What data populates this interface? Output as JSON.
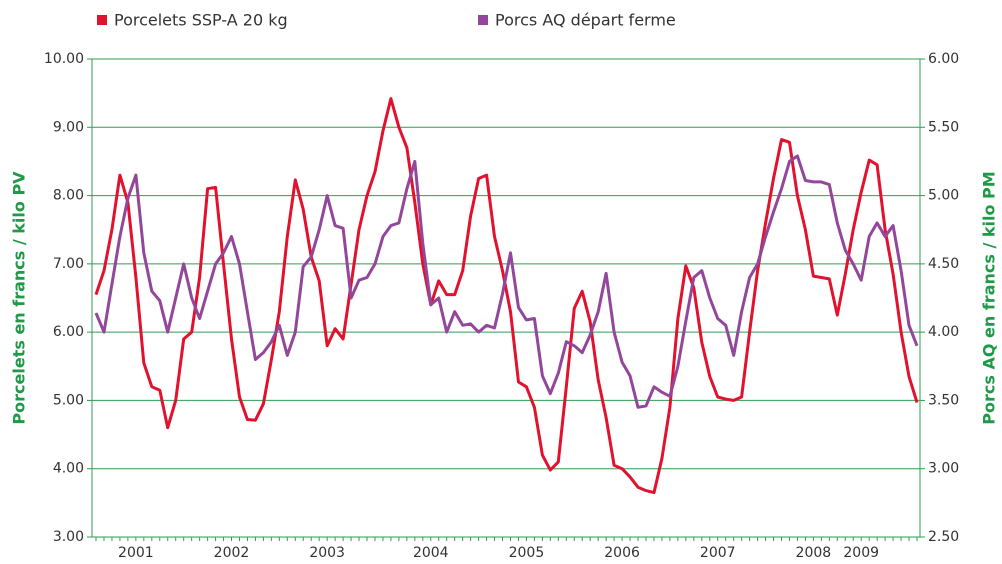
{
  "chart_data": {
    "type": "line",
    "categories": [
      null,
      null,
      null,
      null,
      null,
      "2001",
      null,
      null,
      null,
      null,
      null,
      null,
      null,
      null,
      null,
      null,
      null,
      "2002",
      null,
      null,
      null,
      null,
      null,
      null,
      null,
      null,
      null,
      null,
      null,
      "2003",
      null,
      null,
      null,
      null,
      null,
      null,
      null,
      null,
      null,
      null,
      null,
      null,
      "2004",
      null,
      null,
      null,
      null,
      null,
      null,
      null,
      null,
      null,
      null,
      null,
      "2005",
      null,
      null,
      null,
      null,
      null,
      null,
      null,
      null,
      null,
      null,
      null,
      "2006",
      null,
      null,
      null,
      null,
      null,
      null,
      null,
      null,
      null,
      null,
      null,
      "2007",
      null,
      null,
      null,
      null,
      null,
      null,
      null,
      null,
      null,
      null,
      null,
      "2008",
      null,
      null,
      null,
      null,
      null,
      "2009",
      null,
      null,
      null,
      null,
      null,
      null,
      null
    ],
    "series": [
      {
        "name": "Porcelets SSP-A 20 kg",
        "color": "#e2122e",
        "axis": "y",
        "values": [
          6.55,
          6.9,
          7.5,
          8.3,
          7.9,
          6.8,
          5.55,
          5.2,
          5.15,
          4.6,
          5.0,
          5.9,
          6.0,
          6.8,
          8.1,
          8.12,
          7.0,
          5.9,
          5.05,
          4.72,
          4.71,
          4.95,
          5.6,
          6.3,
          7.4,
          8.23,
          7.8,
          7.1,
          6.75,
          5.8,
          6.05,
          5.9,
          6.7,
          7.5,
          8.0,
          8.35,
          8.95,
          9.42,
          9.0,
          8.7,
          7.9,
          7.0,
          6.4,
          6.75,
          6.55,
          6.55,
          6.9,
          7.7,
          8.25,
          8.3,
          7.4,
          6.9,
          6.3,
          5.27,
          5.2,
          4.9,
          4.2,
          3.98,
          4.1,
          5.2,
          6.35,
          6.6,
          6.15,
          5.3,
          4.75,
          4.05,
          4.0,
          3.88,
          3.73,
          3.68,
          3.65,
          4.15,
          4.9,
          6.2,
          6.97,
          6.65,
          5.85,
          5.35,
          5.05,
          5.02,
          5.0,
          5.05,
          6.0,
          6.9,
          7.6,
          8.25,
          8.82,
          8.78,
          8.0,
          7.5,
          6.82,
          6.8,
          6.78,
          6.25,
          6.85,
          7.5,
          8.05,
          8.52,
          8.45,
          7.5,
          6.85,
          6.0,
          5.35,
          4.97
        ]
      },
      {
        "name": "Porcs AQ départ ferme",
        "color": "#93479a",
        "axis": "y2",
        "values": [
          4.14,
          4.0,
          4.35,
          4.7,
          4.98,
          5.15,
          4.58,
          4.3,
          4.23,
          4.0,
          4.25,
          4.5,
          4.25,
          4.1,
          4.3,
          4.5,
          4.58,
          4.7,
          4.5,
          4.15,
          3.8,
          3.85,
          3.93,
          4.05,
          3.83,
          4.0,
          4.48,
          4.55,
          4.75,
          5.0,
          4.78,
          4.76,
          4.25,
          4.38,
          4.4,
          4.5,
          4.7,
          4.78,
          4.8,
          5.05,
          5.25,
          4.65,
          4.2,
          4.25,
          4.0,
          4.15,
          4.05,
          4.06,
          4.0,
          4.05,
          4.03,
          4.28,
          4.58,
          4.18,
          4.09,
          4.1,
          3.68,
          3.55,
          3.7,
          3.93,
          3.9,
          3.85,
          3.98,
          4.15,
          4.43,
          4.0,
          3.78,
          3.68,
          3.45,
          3.46,
          3.6,
          3.56,
          3.53,
          3.75,
          4.08,
          4.4,
          4.45,
          4.25,
          4.1,
          4.05,
          3.83,
          4.15,
          4.4,
          4.5,
          4.7,
          4.88,
          5.05,
          5.25,
          5.29,
          5.11,
          5.1,
          5.1,
          5.08,
          4.8,
          4.6,
          4.5,
          4.38,
          4.7,
          4.8,
          4.7,
          4.78,
          4.45,
          4.05,
          3.9
        ]
      }
    ],
    "ylabel": "Porcelets en francs / kilo PV",
    "y2label": "Porcs AQ en francs / kilo PM",
    "ylim": [
      3,
      10
    ],
    "yticks": [
      {
        "value": 3,
        "label": "3.00"
      },
      {
        "value": 4,
        "label": "4.00"
      },
      {
        "value": 5,
        "label": "5.00"
      },
      {
        "value": 6,
        "label": "6.00"
      },
      {
        "value": 7,
        "label": "7.00"
      },
      {
        "value": 8,
        "label": "8.00"
      },
      {
        "value": 9,
        "label": "9.00"
      },
      {
        "value": 10,
        "label": "10.00"
      }
    ],
    "y2lim": [
      2.5,
      6
    ],
    "y2ticks": [
      {
        "value": 2.5,
        "label": "2.50"
      },
      {
        "value": 3,
        "label": "3.00"
      },
      {
        "value": 3.5,
        "label": "3.50"
      },
      {
        "value": 4,
        "label": "4.00"
      },
      {
        "value": 4.5,
        "label": "4.50"
      },
      {
        "value": 5,
        "label": "5.00"
      },
      {
        "value": 5.5,
        "label": "5.50"
      },
      {
        "value": 6,
        "label": "6.00"
      }
    ],
    "grid": true,
    "grid_color": "#2e9e50",
    "legend": "top"
  }
}
